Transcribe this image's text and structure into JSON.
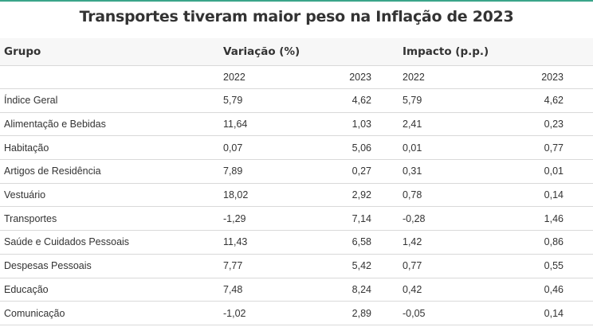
{
  "title": "Transportes tiveram maior peso na Inflação de 2023",
  "colors": {
    "accent": "#3aa58a",
    "header_bg": "#f7f7f7",
    "row_border": "#d9d9d9",
    "text": "#333333"
  },
  "headers": {
    "grupo": "Grupo",
    "variacao": "Variação (%)",
    "impacto": "Impacto (p.p.)"
  },
  "subheaders": {
    "var_2022": "2022",
    "var_2023": "2023",
    "imp_2022": "2022",
    "imp_2023": "2023"
  },
  "rows": [
    {
      "grupo": "Índice Geral",
      "var_2022": "5,79",
      "var_2023": "4,62",
      "imp_2022": "5,79",
      "imp_2023": "4,62"
    },
    {
      "grupo": "Alimentação e Bebidas",
      "var_2022": "11,64",
      "var_2023": "1,03",
      "imp_2022": "2,41",
      "imp_2023": "0,23"
    },
    {
      "grupo": "Habitação",
      "var_2022": "0,07",
      "var_2023": "5,06",
      "imp_2022": "0,01",
      "imp_2023": "0,77"
    },
    {
      "grupo": "Artigos de Residência",
      "var_2022": "7,89",
      "var_2023": "0,27",
      "imp_2022": "0,31",
      "imp_2023": "0,01"
    },
    {
      "grupo": "Vestuário",
      "var_2022": "18,02",
      "var_2023": "2,92",
      "imp_2022": "0,78",
      "imp_2023": "0,14"
    },
    {
      "grupo": "Transportes",
      "var_2022": "-1,29",
      "var_2023": "7,14",
      "imp_2022": "-0,28",
      "imp_2023": "1,46"
    },
    {
      "grupo": "Saúde e Cuidados Pessoais",
      "var_2022": "11,43",
      "var_2023": "6,58",
      "imp_2022": "1,42",
      "imp_2023": "0,86"
    },
    {
      "grupo": "Despesas Pessoais",
      "var_2022": "7,77",
      "var_2023": "5,42",
      "imp_2022": "0,77",
      "imp_2023": "0,55"
    },
    {
      "grupo": "Educação",
      "var_2022": "7,48",
      "var_2023": "8,24",
      "imp_2022": "0,42",
      "imp_2023": "0,46"
    },
    {
      "grupo": "Comunicação",
      "var_2022": "-1,02",
      "var_2023": "2,89",
      "imp_2022": "-0,05",
      "imp_2023": "0,14"
    }
  ]
}
